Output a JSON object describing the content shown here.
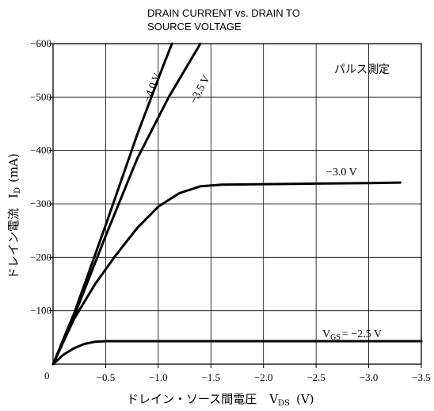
{
  "chart_data": {
    "type": "line",
    "title_line1": "DRAIN CURRENT vs. DRAIN TO",
    "title_line2": "SOURCE VOLTAGE",
    "xlabel": "ドレイン・ソース間電圧",
    "xlabel_symbol": "V",
    "xlabel_sub": "DS",
    "xlabel_unit": "(V)",
    "ylabel": "ドレイン電流",
    "ylabel_symbol": "I",
    "ylabel_sub": "D",
    "ylabel_unit": "(mA)",
    "annotation": "パルス測定",
    "xlim": [
      0,
      -3.5
    ],
    "ylim": [
      0,
      -600
    ],
    "grid": true,
    "x_ticks": [
      {
        "value": -0.5,
        "label": "−0.5"
      },
      {
        "value": -1.0,
        "label": "−1.0"
      },
      {
        "value": -1.5,
        "label": "−1.5"
      },
      {
        "value": -2.0,
        "label": "−2.0"
      },
      {
        "value": -2.5,
        "label": "−2.5"
      },
      {
        "value": -3.0,
        "label": "−3.0"
      },
      {
        "value": -3.5,
        "label": "−3.5"
      }
    ],
    "y_ticks": [
      {
        "value": -100,
        "label": "−100"
      },
      {
        "value": -200,
        "label": "−200"
      },
      {
        "value": -300,
        "label": "−300"
      },
      {
        "value": -400,
        "label": "−400"
      },
      {
        "value": -500,
        "label": "−500"
      },
      {
        "value": -600,
        "label": "−600"
      }
    ],
    "origin_label": "0",
    "series": [
      {
        "name": "−4.0 V",
        "label": "−4.0 V",
        "points": [
          [
            0,
            0
          ],
          [
            -0.2,
            -95
          ],
          [
            -0.5,
            -260
          ],
          [
            -0.8,
            -430
          ],
          [
            -1.05,
            -560
          ],
          [
            -1.13,
            -600
          ]
        ]
      },
      {
        "name": "−3.5 V",
        "label": "−3.5 V",
        "points": [
          [
            0,
            0
          ],
          [
            -0.2,
            -90
          ],
          [
            -0.5,
            -240
          ],
          [
            -0.8,
            -385
          ],
          [
            -1.1,
            -500
          ],
          [
            -1.4,
            -600
          ]
        ]
      },
      {
        "name": "−3.0 V",
        "label": "−3.0 V",
        "points": [
          [
            0,
            0
          ],
          [
            -0.2,
            -85
          ],
          [
            -0.4,
            -150
          ],
          [
            -0.6,
            -205
          ],
          [
            -0.8,
            -255
          ],
          [
            -1.0,
            -295
          ],
          [
            -1.2,
            -320
          ],
          [
            -1.4,
            -333
          ],
          [
            -1.6,
            -336
          ],
          [
            -2.0,
            -337
          ],
          [
            -2.5,
            -338
          ],
          [
            -3.0,
            -339
          ],
          [
            -3.3,
            -340
          ]
        ]
      },
      {
        "name": "V_GS = −2.5 V",
        "label_prefix": "V",
        "label_sub": "GS",
        "label_suffix": "= −2.5 V",
        "points": [
          [
            0,
            0
          ],
          [
            -0.1,
            -18
          ],
          [
            -0.2,
            -30
          ],
          [
            -0.3,
            -38
          ],
          [
            -0.4,
            -42
          ],
          [
            -0.5,
            -43
          ],
          [
            -1.0,
            -43
          ],
          [
            -2.0,
            -43
          ],
          [
            -3.0,
            -43
          ],
          [
            -3.5,
            -43
          ]
        ]
      }
    ]
  }
}
